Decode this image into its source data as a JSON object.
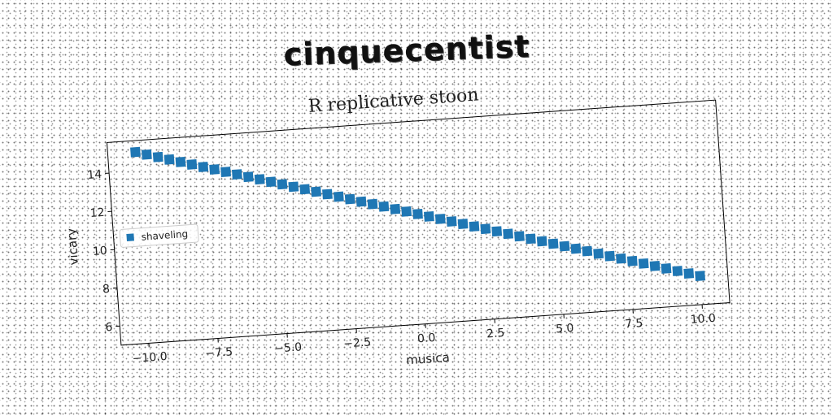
{
  "title": "cinquecentist",
  "chart_data": {
    "type": "scatter",
    "title": "R replicative stoon",
    "xlabel": "musica",
    "ylabel": "vicary",
    "xlim": [
      -11,
      11
    ],
    "ylim": [
      5,
      15.6
    ],
    "xticks": [
      -10.0,
      -7.5,
      -5.0,
      -2.5,
      0.0,
      2.5,
      5.0,
      7.5,
      10.0
    ],
    "xtick_labels": [
      "−10.0",
      "−7.5",
      "−5.0",
      "−2.5",
      "0.0",
      "2.5",
      "5.0",
      "7.5",
      "10.0"
    ],
    "yticks": [
      6,
      8,
      10,
      12,
      14
    ],
    "ytick_labels": [
      "6",
      "8",
      "10",
      "12",
      "14"
    ],
    "grid": false,
    "legend_position": "center-left",
    "series": [
      {
        "name": "shaveling",
        "color": "#1f77b4",
        "marker": "square",
        "x": [
          -10.0,
          -9.6,
          -9.2,
          -8.8,
          -8.4,
          -8.0,
          -7.6,
          -7.2,
          -6.8,
          -6.4,
          -6.0,
          -5.6,
          -5.2,
          -4.8,
          -4.4,
          -4.0,
          -3.6,
          -3.2,
          -2.8,
          -2.4,
          -2.0,
          -1.6,
          -1.2,
          -0.8,
          -0.4,
          0.0,
          0.4,
          0.8,
          1.2,
          1.6,
          2.0,
          2.4,
          2.8,
          3.2,
          3.6,
          4.0,
          4.4,
          4.8,
          5.2,
          5.6,
          6.0,
          6.4,
          6.8,
          7.2,
          7.6,
          8.0,
          8.4,
          8.8,
          9.2,
          9.6,
          10.0
        ],
        "y": [
          15.0,
          14.83,
          14.66,
          14.49,
          14.32,
          14.15,
          13.98,
          13.81,
          13.64,
          13.47,
          13.3,
          13.13,
          12.96,
          12.79,
          12.62,
          12.45,
          12.28,
          12.11,
          11.94,
          11.77,
          11.6,
          11.43,
          11.26,
          11.09,
          10.92,
          10.75,
          10.58,
          10.41,
          10.24,
          10.07,
          9.9,
          9.73,
          9.56,
          9.39,
          9.22,
          9.05,
          8.88,
          8.71,
          8.54,
          8.37,
          8.2,
          8.03,
          7.86,
          7.69,
          7.52,
          7.35,
          7.18,
          7.01,
          6.84,
          6.67,
          6.5
        ]
      }
    ]
  }
}
